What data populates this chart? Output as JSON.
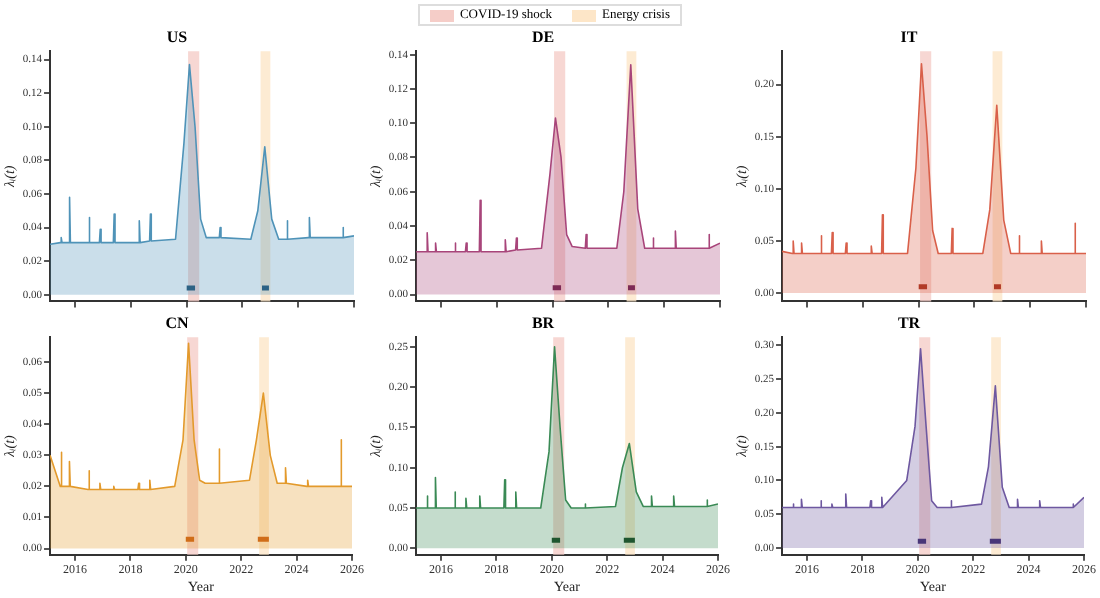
{
  "chart_data": [
    {
      "type": "area",
      "title": "US",
      "ylabel": "λᵢ(t)",
      "legend": "top",
      "tick_labels": "y",
      "xlim": [
        2015.1,
        2026.0
      ],
      "xticks": [
        {
          "value": 2016,
          "label": null
        },
        {
          "value": 2018,
          "label": null
        },
        {
          "value": 2020,
          "label": null
        },
        {
          "value": 2022,
          "label": null
        },
        {
          "value": 2024,
          "label": null
        },
        {
          "value": 2026,
          "label": null
        }
      ],
      "ylim": [
        -0.004,
        0.145
      ],
      "yticks": [
        {
          "value": 0,
          "label": "0.00"
        },
        {
          "value": 0.02,
          "label": "0.02"
        },
        {
          "value": 0.04,
          "label": "0.04"
        },
        {
          "value": 0.06,
          "label": "0.06"
        },
        {
          "value": 0.08,
          "label": "0.08"
        },
        {
          "value": 0.1,
          "label": "0.10"
        },
        {
          "value": 0.12,
          "label": "0.12"
        },
        {
          "value": 0.14,
          "label": "0.14"
        }
      ],
      "bands": [
        {
          "axis": "x",
          "from": 2020.05,
          "to": 2020.45,
          "label": "COVID-19 shock",
          "color": "#f5cdc8"
        },
        {
          "axis": "x",
          "from": 2022.65,
          "to": 2023.0,
          "label": "Energy crisis",
          "color": "#fde6c8"
        }
      ],
      "series": [
        {
          "type": "area",
          "color": "#4f93b8",
          "x": [
            2015.1,
            2015.47,
            2015.5,
            2015.53,
            2015.77,
            2015.8,
            2015.83,
            2016.47,
            2016.5,
            2016.53,
            2016.87,
            2016.9,
            2016.93,
            2017.37,
            2017.4,
            2017.43,
            2018.27,
            2018.3,
            2018.33,
            2018.67,
            2018.7,
            2018.73,
            2019.6,
            2019.9,
            2020.1,
            2020.3,
            2020.5,
            2020.7,
            2021.17,
            2021.2,
            2021.23,
            2022.3,
            2022.55,
            2022.8,
            2023.05,
            2023.3,
            2023.57,
            2023.6,
            2023.63,
            2024.37,
            2024.4,
            2024.43,
            2025.57,
            2025.6,
            2025.63,
            2026.0
          ],
          "values": [
            0.03,
            0.031,
            0.034,
            0.031,
            0.031,
            0.058,
            0.031,
            0.031,
            0.046,
            0.031,
            0.031,
            0.039,
            0.031,
            0.031,
            0.048,
            0.031,
            0.031,
            0.044,
            0.031,
            0.032,
            0.048,
            0.032,
            0.033,
            0.09,
            0.137,
            0.1,
            0.045,
            0.034,
            0.034,
            0.04,
            0.034,
            0.033,
            0.05,
            0.088,
            0.045,
            0.033,
            0.033,
            0.044,
            0.033,
            0.034,
            0.046,
            0.034,
            0.034,
            0.04,
            0.034,
            0.035
          ]
        },
        {
          "type": "line",
          "color": "#1f4e6e",
          "x": [
            2020.0,
            2020.3,
            2020.31,
            2022.7,
            2022.95
          ],
          "values": [
            0.004,
            0.004,
            null,
            0.004,
            0.004
          ]
        }
      ]
    },
    {
      "type": "area",
      "title": "DE",
      "ylabel": "λᵢ(t)",
      "tick_labels": "y",
      "xlim": [
        2015.1,
        2026.0
      ],
      "xticks": [
        {
          "value": 2016,
          "label": null
        },
        {
          "value": 2018,
          "label": null
        },
        {
          "value": 2020,
          "label": null
        },
        {
          "value": 2022,
          "label": null
        },
        {
          "value": 2024,
          "label": null
        },
        {
          "value": 2026,
          "label": null
        }
      ],
      "ylim": [
        -0.004,
        0.142
      ],
      "yticks": [
        {
          "value": 0,
          "label": "0.00"
        },
        {
          "value": 0.02,
          "label": "0.02"
        },
        {
          "value": 0.04,
          "label": "0.04"
        },
        {
          "value": 0.06,
          "label": "0.06"
        },
        {
          "value": 0.08,
          "label": "0.08"
        },
        {
          "value": 0.1,
          "label": "0.10"
        },
        {
          "value": 0.12,
          "label": "0.12"
        },
        {
          "value": 0.14,
          "label": "0.14"
        }
      ],
      "bands": [
        {
          "axis": "x",
          "from": 2020.05,
          "to": 2020.45,
          "color": "#f5cdc8"
        },
        {
          "axis": "x",
          "from": 2022.65,
          "to": 2023.0,
          "color": "#fde6c8"
        }
      ],
      "series": [
        {
          "type": "area",
          "color": "#a8457a",
          "x": [
            2015.1,
            2015.47,
            2015.5,
            2015.53,
            2015.77,
            2015.8,
            2015.83,
            2016.47,
            2016.5,
            2016.53,
            2016.87,
            2016.9,
            2016.93,
            2017.37,
            2017.4,
            2017.43,
            2018.27,
            2018.3,
            2018.33,
            2018.67,
            2018.7,
            2018.73,
            2019.6,
            2019.9,
            2020.1,
            2020.3,
            2020.5,
            2020.7,
            2021.17,
            2021.2,
            2021.23,
            2022.3,
            2022.55,
            2022.8,
            2023.05,
            2023.3,
            2023.57,
            2023.6,
            2023.63,
            2024.37,
            2024.4,
            2024.43,
            2025.57,
            2025.6,
            2025.63,
            2026.0
          ],
          "values": [
            0.025,
            0.025,
            0.036,
            0.025,
            0.025,
            0.03,
            0.025,
            0.025,
            0.03,
            0.025,
            0.025,
            0.03,
            0.025,
            0.025,
            0.055,
            0.025,
            0.025,
            0.032,
            0.025,
            0.026,
            0.033,
            0.026,
            0.027,
            0.07,
            0.103,
            0.08,
            0.035,
            0.028,
            0.027,
            0.035,
            0.027,
            0.027,
            0.06,
            0.134,
            0.05,
            0.027,
            0.027,
            0.033,
            0.027,
            0.027,
            0.037,
            0.027,
            0.027,
            0.035,
            0.027,
            0.03
          ]
        },
        {
          "type": "line",
          "color": "#6b1f45",
          "x": [
            2020.0,
            2020.3,
            2020.31,
            2022.7,
            2022.95
          ],
          "values": [
            0.004,
            0.004,
            null,
            0.004,
            0.004
          ]
        }
      ]
    },
    {
      "type": "area",
      "title": "IT",
      "ylabel": "λᵢ(t)",
      "tick_labels": "y",
      "xlim": [
        2015.1,
        2026.0
      ],
      "xticks": [
        {
          "value": 2016,
          "label": null
        },
        {
          "value": 2018,
          "label": null
        },
        {
          "value": 2020,
          "label": null
        },
        {
          "value": 2022,
          "label": null
        },
        {
          "value": 2024,
          "label": null
        },
        {
          "value": 2026,
          "label": null
        }
      ],
      "ylim": [
        -0.008,
        0.232
      ],
      "yticks": [
        {
          "value": 0,
          "label": "0.00"
        },
        {
          "value": 0.05,
          "label": "0.05"
        },
        {
          "value": 0.1,
          "label": "0.10"
        },
        {
          "value": 0.15,
          "label": "0.15"
        },
        {
          "value": 0.2,
          "label": "0.20"
        }
      ],
      "bands": [
        {
          "axis": "x",
          "from": 2020.05,
          "to": 2020.45,
          "color": "#f5cdc8"
        },
        {
          "axis": "x",
          "from": 2022.65,
          "to": 2023.0,
          "color": "#fde6c8"
        }
      ],
      "series": [
        {
          "type": "area",
          "color": "#d9604a",
          "x": [
            2015.1,
            2015.47,
            2015.5,
            2015.53,
            2015.77,
            2015.8,
            2015.83,
            2016.47,
            2016.5,
            2016.53,
            2016.87,
            2016.9,
            2016.93,
            2017.37,
            2017.4,
            2017.43,
            2018.27,
            2018.3,
            2018.33,
            2018.67,
            2018.7,
            2018.73,
            2019.6,
            2019.9,
            2020.1,
            2020.3,
            2020.5,
            2020.7,
            2021.17,
            2021.2,
            2021.23,
            2022.3,
            2022.55,
            2022.8,
            2023.05,
            2023.3,
            2023.57,
            2023.6,
            2023.63,
            2024.37,
            2024.4,
            2024.43,
            2025.57,
            2025.6,
            2025.63,
            2026.0
          ],
          "values": [
            0.04,
            0.038,
            0.05,
            0.038,
            0.038,
            0.048,
            0.038,
            0.038,
            0.055,
            0.038,
            0.038,
            0.058,
            0.038,
            0.038,
            0.048,
            0.038,
            0.038,
            0.045,
            0.038,
            0.038,
            0.075,
            0.038,
            0.038,
            0.12,
            0.22,
            0.15,
            0.06,
            0.038,
            0.038,
            0.062,
            0.038,
            0.038,
            0.08,
            0.18,
            0.07,
            0.038,
            0.038,
            0.055,
            0.038,
            0.038,
            0.05,
            0.038,
            0.038,
            0.067,
            0.038,
            0.038
          ]
        },
        {
          "type": "line",
          "color": "#a02a18",
          "x": [
            2020.0,
            2020.3,
            2020.31,
            2022.7,
            2022.95
          ],
          "values": [
            0.006,
            0.006,
            null,
            0.006,
            0.006
          ]
        }
      ]
    },
    {
      "type": "area",
      "title": "CN",
      "ylabel": "λᵢ(t)",
      "xlabel": "Year",
      "xlim": [
        2015.1,
        2026.0
      ],
      "xticks": [
        2016,
        2018,
        2020,
        2022,
        2024,
        2026
      ],
      "ylim": [
        -0.002,
        0.068
      ],
      "yticks": [
        {
          "value": 0,
          "label": "0.00"
        },
        {
          "value": 0.01,
          "label": "0.01"
        },
        {
          "value": 0.02,
          "label": "0.02"
        },
        {
          "value": 0.03,
          "label": "0.03"
        },
        {
          "value": 0.04,
          "label": "0.04"
        },
        {
          "value": 0.05,
          "label": "0.05"
        },
        {
          "value": 0.06,
          "label": "0.06"
        }
      ],
      "bands": [
        {
          "axis": "x",
          "from": 2020.05,
          "to": 2020.45,
          "color": "#f5cdc8"
        },
        {
          "axis": "x",
          "from": 2022.65,
          "to": 2023.0,
          "color": "#fde6c8"
        }
      ],
      "series": [
        {
          "type": "area",
          "color": "#e39a2c",
          "x": [
            2015.1,
            2015.47,
            2015.5,
            2015.53,
            2015.77,
            2015.8,
            2015.83,
            2016.47,
            2016.5,
            2016.53,
            2016.87,
            2016.9,
            2016.93,
            2017.37,
            2017.4,
            2017.43,
            2018.27,
            2018.3,
            2018.33,
            2018.67,
            2018.7,
            2018.73,
            2019.6,
            2019.9,
            2020.1,
            2020.3,
            2020.5,
            2020.7,
            2021.17,
            2021.2,
            2021.23,
            2022.3,
            2022.55,
            2022.8,
            2023.05,
            2023.3,
            2023.57,
            2023.6,
            2023.63,
            2024.37,
            2024.4,
            2024.43,
            2025.57,
            2025.6,
            2025.63,
            2026.0
          ],
          "values": [
            0.03,
            0.02,
            0.031,
            0.02,
            0.02,
            0.028,
            0.02,
            0.019,
            0.025,
            0.019,
            0.019,
            0.021,
            0.019,
            0.019,
            0.02,
            0.019,
            0.019,
            0.021,
            0.019,
            0.019,
            0.022,
            0.019,
            0.02,
            0.035,
            0.066,
            0.035,
            0.022,
            0.021,
            0.021,
            0.032,
            0.021,
            0.022,
            0.035,
            0.05,
            0.03,
            0.021,
            0.021,
            0.026,
            0.021,
            0.02,
            0.022,
            0.02,
            0.02,
            0.035,
            0.02,
            0.02
          ]
        },
        {
          "type": "line",
          "color": "#c85a10",
          "x": [
            2020.0,
            2020.3,
            2020.31,
            2022.6,
            2023.0
          ],
          "values": [
            0.003,
            0.003,
            null,
            0.003,
            0.003
          ]
        }
      ]
    },
    {
      "type": "area",
      "title": "BR",
      "ylabel": "λᵢ(t)",
      "xlabel": "Year",
      "xlim": [
        2015.1,
        2026.0
      ],
      "xticks": [
        2016,
        2018,
        2020,
        2022,
        2024,
        2026
      ],
      "ylim": [
        -0.008,
        0.262
      ],
      "yticks": [
        {
          "value": 0,
          "label": "0.00"
        },
        {
          "value": 0.05,
          "label": "0.05"
        },
        {
          "value": 0.1,
          "label": "0.10"
        },
        {
          "value": 0.15,
          "label": "0.15"
        },
        {
          "value": 0.2,
          "label": "0.20"
        },
        {
          "value": 0.25,
          "label": "0.25"
        }
      ],
      "bands": [
        {
          "axis": "x",
          "from": 2020.05,
          "to": 2020.45,
          "color": "#f5cdc8"
        },
        {
          "axis": "x",
          "from": 2022.65,
          "to": 2023.0,
          "color": "#fde6c8"
        }
      ],
      "series": [
        {
          "type": "area",
          "color": "#3a8a55",
          "x": [
            2015.1,
            2015.47,
            2015.5,
            2015.53,
            2015.77,
            2015.8,
            2015.83,
            2016.47,
            2016.5,
            2016.53,
            2016.87,
            2016.9,
            2016.93,
            2017.37,
            2017.4,
            2017.43,
            2018.27,
            2018.3,
            2018.33,
            2018.67,
            2018.7,
            2018.73,
            2019.6,
            2019.9,
            2020.1,
            2020.3,
            2020.5,
            2020.7,
            2021.17,
            2021.2,
            2021.23,
            2022.3,
            2022.55,
            2022.8,
            2023.05,
            2023.3,
            2023.57,
            2023.6,
            2023.63,
            2024.37,
            2024.4,
            2024.43,
            2025.57,
            2025.6,
            2025.63,
            2026.0
          ],
          "values": [
            0.05,
            0.05,
            0.065,
            0.05,
            0.05,
            0.088,
            0.05,
            0.05,
            0.07,
            0.05,
            0.05,
            0.062,
            0.05,
            0.05,
            0.065,
            0.05,
            0.05,
            0.085,
            0.05,
            0.05,
            0.07,
            0.05,
            0.05,
            0.12,
            0.25,
            0.15,
            0.06,
            0.05,
            0.05,
            0.055,
            0.05,
            0.052,
            0.1,
            0.13,
            0.07,
            0.052,
            0.052,
            0.065,
            0.052,
            0.052,
            0.065,
            0.052,
            0.052,
            0.06,
            0.052,
            0.055
          ]
        },
        {
          "type": "line",
          "color": "#14401f",
          "x": [
            2020.0,
            2020.3,
            2020.31,
            2022.6,
            2023.0
          ],
          "values": [
            0.01,
            0.01,
            null,
            0.01,
            0.01
          ]
        }
      ]
    },
    {
      "type": "area",
      "title": "TR",
      "ylabel": "λᵢ(t)",
      "xlabel": "Year",
      "xlim": [
        2015.1,
        2026.0
      ],
      "xticks": [
        2016,
        2018,
        2020,
        2022,
        2024,
        2026
      ],
      "ylim": [
        -0.01,
        0.312
      ],
      "yticks": [
        {
          "value": 0,
          "label": "0.00"
        },
        {
          "value": 0.05,
          "label": "0.05"
        },
        {
          "value": 0.1,
          "label": "0.10"
        },
        {
          "value": 0.15,
          "label": "0.15"
        },
        {
          "value": 0.2,
          "label": "0.20"
        },
        {
          "value": 0.25,
          "label": "0.25"
        },
        {
          "value": 0.3,
          "label": "0.30"
        }
      ],
      "bands": [
        {
          "axis": "x",
          "from": 2020.05,
          "to": 2020.45,
          "color": "#f5cdc8"
        },
        {
          "axis": "x",
          "from": 2022.65,
          "to": 2023.0,
          "color": "#fde6c8"
        }
      ],
      "series": [
        {
          "type": "area",
          "color": "#6e58a0",
          "x": [
            2015.1,
            2015.47,
            2015.5,
            2015.53,
            2015.77,
            2015.8,
            2015.83,
            2016.47,
            2016.5,
            2016.53,
            2016.87,
            2016.9,
            2016.93,
            2017.37,
            2017.4,
            2017.43,
            2018.27,
            2018.3,
            2018.33,
            2018.67,
            2018.7,
            2018.73,
            2019.6,
            2019.9,
            2020.1,
            2020.3,
            2020.5,
            2020.7,
            2021.17,
            2021.2,
            2021.23,
            2022.3,
            2022.55,
            2022.8,
            2023.05,
            2023.3,
            2023.57,
            2023.6,
            2023.63,
            2024.37,
            2024.4,
            2024.43,
            2025.57,
            2025.6,
            2025.63,
            2026.0
          ],
          "values": [
            0.06,
            0.06,
            0.065,
            0.06,
            0.06,
            0.072,
            0.06,
            0.06,
            0.07,
            0.06,
            0.06,
            0.065,
            0.06,
            0.06,
            0.08,
            0.06,
            0.06,
            0.07,
            0.06,
            0.06,
            0.075,
            0.06,
            0.1,
            0.18,
            0.295,
            0.18,
            0.07,
            0.06,
            0.06,
            0.07,
            0.06,
            0.065,
            0.12,
            0.24,
            0.09,
            0.06,
            0.06,
            0.072,
            0.06,
            0.06,
            0.07,
            0.06,
            0.06,
            0.065,
            0.06,
            0.075
          ]
        },
        {
          "type": "line",
          "color": "#3a2868",
          "x": [
            2020.0,
            2020.3,
            2020.31,
            2022.6,
            2023.0
          ],
          "values": [
            0.01,
            0.01,
            null,
            0.01,
            0.01
          ]
        }
      ]
    }
  ]
}
